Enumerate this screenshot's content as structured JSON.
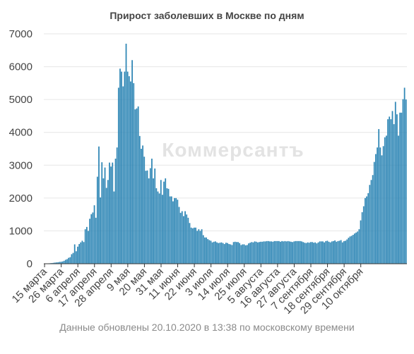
{
  "footnote": "Данные обновлены 20.10.2020 в 13:38 по московскому времени",
  "watermark": "Коммерсантъ",
  "colors": {
    "bar": "#2e86b5",
    "grid": "#e6e6e6",
    "axis": "#333333",
    "text": "#444444"
  },
  "chart_data": {
    "type": "bar",
    "title": "Прирост заболевших в Москве по дням",
    "xlabel": "",
    "ylabel": "",
    "ylim": [
      0,
      7000
    ],
    "y_ticks": [
      0,
      1000,
      2000,
      3000,
      4000,
      5000,
      6000,
      7000
    ],
    "grid": true,
    "x_tick_labels": [
      "15 марта",
      "26 марта",
      "6 апреля",
      "17 апреля",
      "28 апреля",
      "9 мая",
      "20 мая",
      "31 мая",
      "11 июня",
      "22 июня",
      "3 июля",
      "14 июля",
      "25 июля",
      "5 августа",
      "16 августа",
      "27 августа",
      "7 сентября",
      "18 сентября",
      "29 сентября",
      "10 октября"
    ],
    "values": [
      5,
      6,
      9,
      12,
      17,
      21,
      28,
      35,
      40,
      45,
      55,
      60,
      70,
      90,
      120,
      140,
      180,
      200,
      290,
      330,
      590,
      380,
      520,
      600,
      650,
      700,
      660,
      1050,
      1120,
      1000,
      1370,
      1510,
      1560,
      1780,
      1400,
      2650,
      3570,
      2020,
      3090,
      2600,
      2930,
      2310,
      2550,
      3080,
      2960,
      3080,
      2200,
      3200,
      3540,
      5360,
      5940,
      5850,
      5400,
      5850,
      6700,
      5850,
      5710,
      5550,
      6200,
      5500,
      4700,
      4730,
      4790,
      3890,
      3500,
      3600,
      3260,
      2830,
      2840,
      2600,
      2910,
      3200,
      2600,
      2900,
      2300,
      2200,
      2140,
      2550,
      2100,
      2500,
      2600,
      2300,
      2280,
      2050,
      2050,
      1900,
      2000,
      2000,
      1950,
      1730,
      1550,
      1600,
      1450,
      1600,
      1500,
      1400,
      1240,
      1100,
      1080,
      1100,
      1100,
      1000,
      1050,
      1000,
      1050,
      870,
      800,
      800,
      750,
      720,
      700,
      650,
      670,
      680,
      650,
      630,
      640,
      650,
      630,
      600,
      640,
      630,
      600,
      590,
      570,
      660,
      670,
      660,
      660,
      630,
      570,
      590,
      590,
      560,
      570,
      620,
      640,
      660,
      650,
      680,
      670,
      650,
      660,
      670,
      670,
      680,
      680,
      690,
      690,
      680,
      680,
      670,
      690,
      690,
      690,
      690,
      670,
      690,
      680,
      690,
      680,
      690,
      680,
      670,
      660,
      680,
      690,
      690,
      690,
      690,
      680,
      660,
      640,
      630,
      650,
      640,
      660,
      660,
      640,
      650,
      620,
      650,
      680,
      680,
      680,
      650,
      690,
      700,
      670,
      650,
      680,
      690,
      710,
      670,
      690,
      700,
      720,
      650,
      690,
      700,
      740,
      790,
      830,
      850,
      880,
      920,
      950,
      980,
      1050,
      1320,
      1570,
      1750,
      2000,
      2050,
      2150,
      2400,
      2550,
      2700,
      3100,
      3340,
      3540,
      4100,
      3540,
      3300,
      3580,
      3850,
      3900,
      4400,
      4480,
      4400,
      4650,
      4250,
      4930,
      4550,
      3900,
      4600,
      4600,
      5010,
      5360,
      5000
    ]
  }
}
